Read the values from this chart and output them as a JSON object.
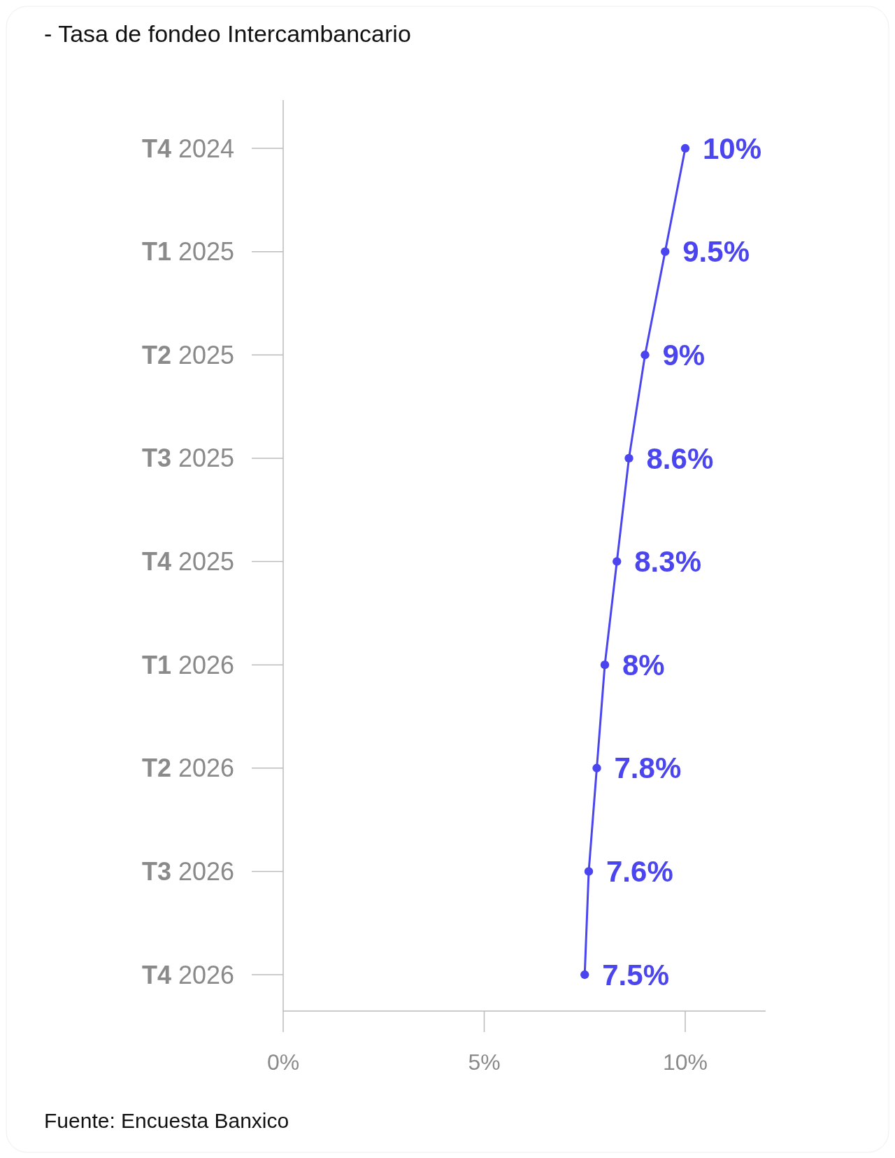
{
  "chart_data": {
    "type": "line",
    "orientation": "horizontal",
    "title": "-  Tasa de fondeo Intercambancario",
    "categories": [
      "T4 2024",
      "T1 2025",
      "T2 2025",
      "T3 2025",
      "T4 2025",
      "T1 2026",
      "T2 2026",
      "T3 2026",
      "T4 2026"
    ],
    "series": [
      {
        "color": "#4a45ee",
        "values": [
          10,
          9.5,
          9,
          8.6,
          8.3,
          8,
          7.8,
          7.6,
          7.5
        ]
      }
    ],
    "value_labels": [
      "10%",
      "9.5%",
      "9%",
      "8.6%",
      "8.3%",
      "8%",
      "7.8%",
      "7.6%",
      "7.5%"
    ],
    "xlim": [
      0,
      12
    ],
    "xticks": [
      {
        "value": 0,
        "label": "0%"
      },
      {
        "value": 5,
        "label": "5%"
      },
      {
        "value": 10,
        "label": "10%"
      }
    ],
    "marker": "circle",
    "annotations": [
      "Fuente:  Encuesta Banxico"
    ]
  }
}
